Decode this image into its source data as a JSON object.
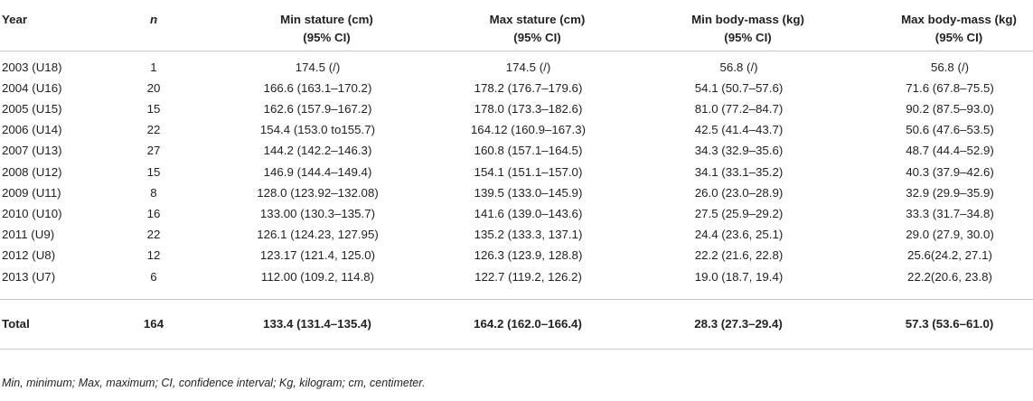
{
  "table": {
    "headers": {
      "year": "Year",
      "n": "n",
      "min_stature_l1": "Min stature (cm)",
      "min_stature_l2": "(95% CI)",
      "max_stature_l1": "Max stature (cm)",
      "max_stature_l2": "(95% CI)",
      "min_mass_l1": "Min body-mass (kg)",
      "min_mass_l2": "(95% CI)",
      "max_mass_l1": "Max body-mass (kg)",
      "max_mass_l2": "(95% CI)"
    },
    "rows": [
      {
        "year": "2003 (U18)",
        "n": "1",
        "min_stature": "174.5 (/)",
        "max_stature": "174.5 (/)",
        "min_mass": "56.8 (/)",
        "max_mass": "56.8 (/)"
      },
      {
        "year": "2004 (U16)",
        "n": "20",
        "min_stature": "166.6 (163.1–170.2)",
        "max_stature": "178.2 (176.7–179.6)",
        "min_mass": "54.1 (50.7–57.6)",
        "max_mass": "71.6 (67.8–75.5)"
      },
      {
        "year": "2005 (U15)",
        "n": "15",
        "min_stature": "162.6 (157.9–167.2)",
        "max_stature": "178.0 (173.3–182.6)",
        "min_mass": "81.0 (77.2–84.7)",
        "max_mass": "90.2 (87.5–93.0)"
      },
      {
        "year": "2006 (U14)",
        "n": "22",
        "min_stature": "154.4 (153.0 to155.7)",
        "max_stature": "164.12 (160.9–167.3)",
        "min_mass": "42.5 (41.4–43.7)",
        "max_mass": "50.6 (47.6–53.5)"
      },
      {
        "year": "2007 (U13)",
        "n": "27",
        "min_stature": "144.2 (142.2–146.3)",
        "max_stature": "160.8 (157.1–164.5)",
        "min_mass": "34.3 (32.9–35.6)",
        "max_mass": "48.7 (44.4–52.9)"
      },
      {
        "year": "2008 (U12)",
        "n": "15",
        "min_stature": "146.9 (144.4–149.4)",
        "max_stature": "154.1 (151.1–157.0)",
        "min_mass": "34.1 (33.1–35.2)",
        "max_mass": "40.3 (37.9–42.6)"
      },
      {
        "year": "2009 (U11)",
        "n": "8",
        "min_stature": "128.0 (123.92–132.08)",
        "max_stature": "139.5 (133.0–145.9)",
        "min_mass": "26.0 (23.0–28.9)",
        "max_mass": "32.9 (29.9–35.9)"
      },
      {
        "year": "2010 (U10)",
        "n": "16",
        "min_stature": "133.00 (130.3–135.7)",
        "max_stature": "141.6 (139.0–143.6)",
        "min_mass": "27.5 (25.9–29.2)",
        "max_mass": "33.3 (31.7–34.8)"
      },
      {
        "year": "2011 (U9)",
        "n": "22",
        "min_stature": "126.1 (124.23, 127.95)",
        "max_stature": "135.2 (133.3, 137.1)",
        "min_mass": "24.4 (23.6, 25.1)",
        "max_mass": "29.0 (27.9, 30.0)"
      },
      {
        "year": "2012 (U8)",
        "n": "12",
        "min_stature": "123.17 (121.4, 125.0)",
        "max_stature": "126.3 (123.9, 128.8)",
        "min_mass": "22.2 (21.6, 22.8)",
        "max_mass": "25.6(24.2, 27.1)"
      },
      {
        "year": "2013 (U7)",
        "n": "6",
        "min_stature": "112.00 (109.2, 114.8)",
        "max_stature": "122.7 (119.2, 126.2)",
        "min_mass": "19.0 (18.7, 19.4)",
        "max_mass": "22.2(20.6, 23.8)"
      }
    ],
    "total": {
      "year": "Total",
      "n": "164",
      "min_stature": "133.4 (131.4–135.4)",
      "max_stature": "164.2 (162.0–166.4)",
      "min_mass": "28.3 (27.3–29.4)",
      "max_mass": "57.3 (53.6–61.0)"
    }
  },
  "footnote": "Min, minimum; Max, maximum; CI, confidence interval; Kg, kilogram; cm, centimeter."
}
